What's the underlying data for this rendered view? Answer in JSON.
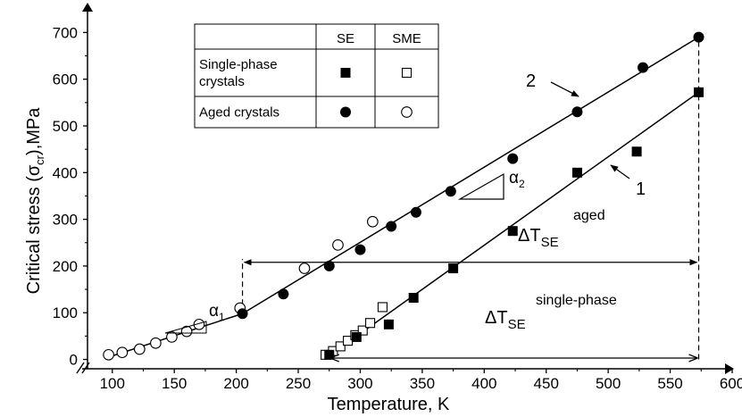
{
  "chart_data": {
    "type": "scatter",
    "xlabel": "Temperature, K",
    "ylabel": "Critical stress (σcr),MPa",
    "ylabel_main": "Critical stress (σ",
    "ylabel_sub": "cr",
    "ylabel_end": "),MPa",
    "xlim": [
      80,
      600
    ],
    "ylim": [
      -20,
      760
    ],
    "x_ticks": [
      100,
      150,
      200,
      250,
      300,
      350,
      400,
      450,
      500,
      550,
      600
    ],
    "y_ticks": [
      0,
      100,
      200,
      300,
      400,
      500,
      600,
      700
    ],
    "grid": false,
    "legend": {
      "placement": "top-left",
      "col_headers": [
        "SE",
        "SME"
      ],
      "rows": [
        {
          "label_lines": [
            "Single-phase",
            "crystals"
          ],
          "se": "filled-square",
          "sme": "open-square"
        },
        {
          "label_lines": [
            "Aged crystals"
          ],
          "se": "filled-circle",
          "sme": "open-circle"
        }
      ]
    },
    "series": [
      {
        "marker": "open-circle",
        "x": [
          97,
          108,
          122,
          135,
          148,
          160,
          170,
          203,
          255,
          282,
          310
        ],
        "y": [
          10,
          15,
          22,
          35,
          48,
          60,
          75,
          110,
          195,
          245,
          295
        ]
      },
      {
        "marker": "filled-circle",
        "x": [
          205,
          238,
          275,
          300,
          325,
          345,
          373,
          423,
          475,
          528,
          573
        ],
        "y": [
          98,
          140,
          200,
          235,
          285,
          315,
          360,
          430,
          530,
          625,
          690
        ]
      },
      {
        "marker": "open-square",
        "x": [
          272,
          278,
          284,
          290,
          296,
          302,
          308,
          318
        ],
        "y": [
          10,
          18,
          28,
          40,
          52,
          62,
          78,
          112
        ]
      },
      {
        "marker": "filled-square",
        "x": [
          275,
          297,
          323,
          343,
          375,
          423,
          475,
          523,
          573
        ],
        "y": [
          10,
          48,
          75,
          132,
          195,
          275,
          400,
          445,
          572
        ]
      }
    ],
    "fit_lines": [
      {
        "name": "aged-low",
        "x": [
          97,
          205
        ],
        "y": [
          5,
          98
        ]
      },
      {
        "name": "2",
        "x": [
          205,
          573
        ],
        "y": [
          98,
          690
        ]
      },
      {
        "name": "1",
        "x": [
          275,
          573
        ],
        "y": [
          8,
          572
        ]
      }
    ],
    "dashed_verticals": [
      {
        "x": 205,
        "y": [
          98,
          215
        ]
      },
      {
        "x": 573,
        "y": [
          0,
          690
        ]
      }
    ],
    "arrows": [
      {
        "x": [
          205,
          573
        ],
        "y": [
          208,
          208
        ]
      },
      {
        "x": [
          275,
          573
        ],
        "y": [
          3,
          3
        ]
      }
    ],
    "annotations": {
      "line2_label": "2",
      "line1_label": "1",
      "delta_aged_main": "ΔT",
      "delta_aged_sub": "SE",
      "delta_aged_sup": "aged",
      "delta_single_main": "ΔT",
      "delta_single_sub": "SE",
      "delta_single_sup": "single-phase",
      "alpha1_main": "α",
      "alpha1_sub": "1",
      "alpha2_main": "α",
      "alpha2_sub": "2"
    }
  }
}
